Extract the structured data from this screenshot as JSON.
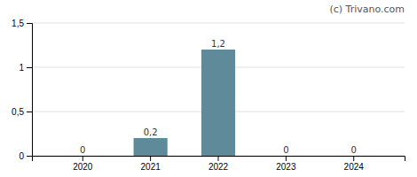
{
  "chart_data": {
    "type": "bar",
    "categories": [
      "2020",
      "2021",
      "2022",
      "2023",
      "2024"
    ],
    "values": [
      0,
      0.2,
      1.2,
      0,
      0
    ],
    "value_labels": [
      "0",
      "0,2",
      "1,2",
      "0",
      "0"
    ],
    "data_labels": true,
    "color": "#5f8a9a",
    "ylim": [
      0,
      1.5
    ],
    "yticks": [
      0,
      {
        "value": 0.5,
        "label": "0,5"
      },
      1,
      {
        "value": 1.5,
        "label": "1,5"
      }
    ],
    "grid": true,
    "annotation": "(c) Trivano.com"
  }
}
